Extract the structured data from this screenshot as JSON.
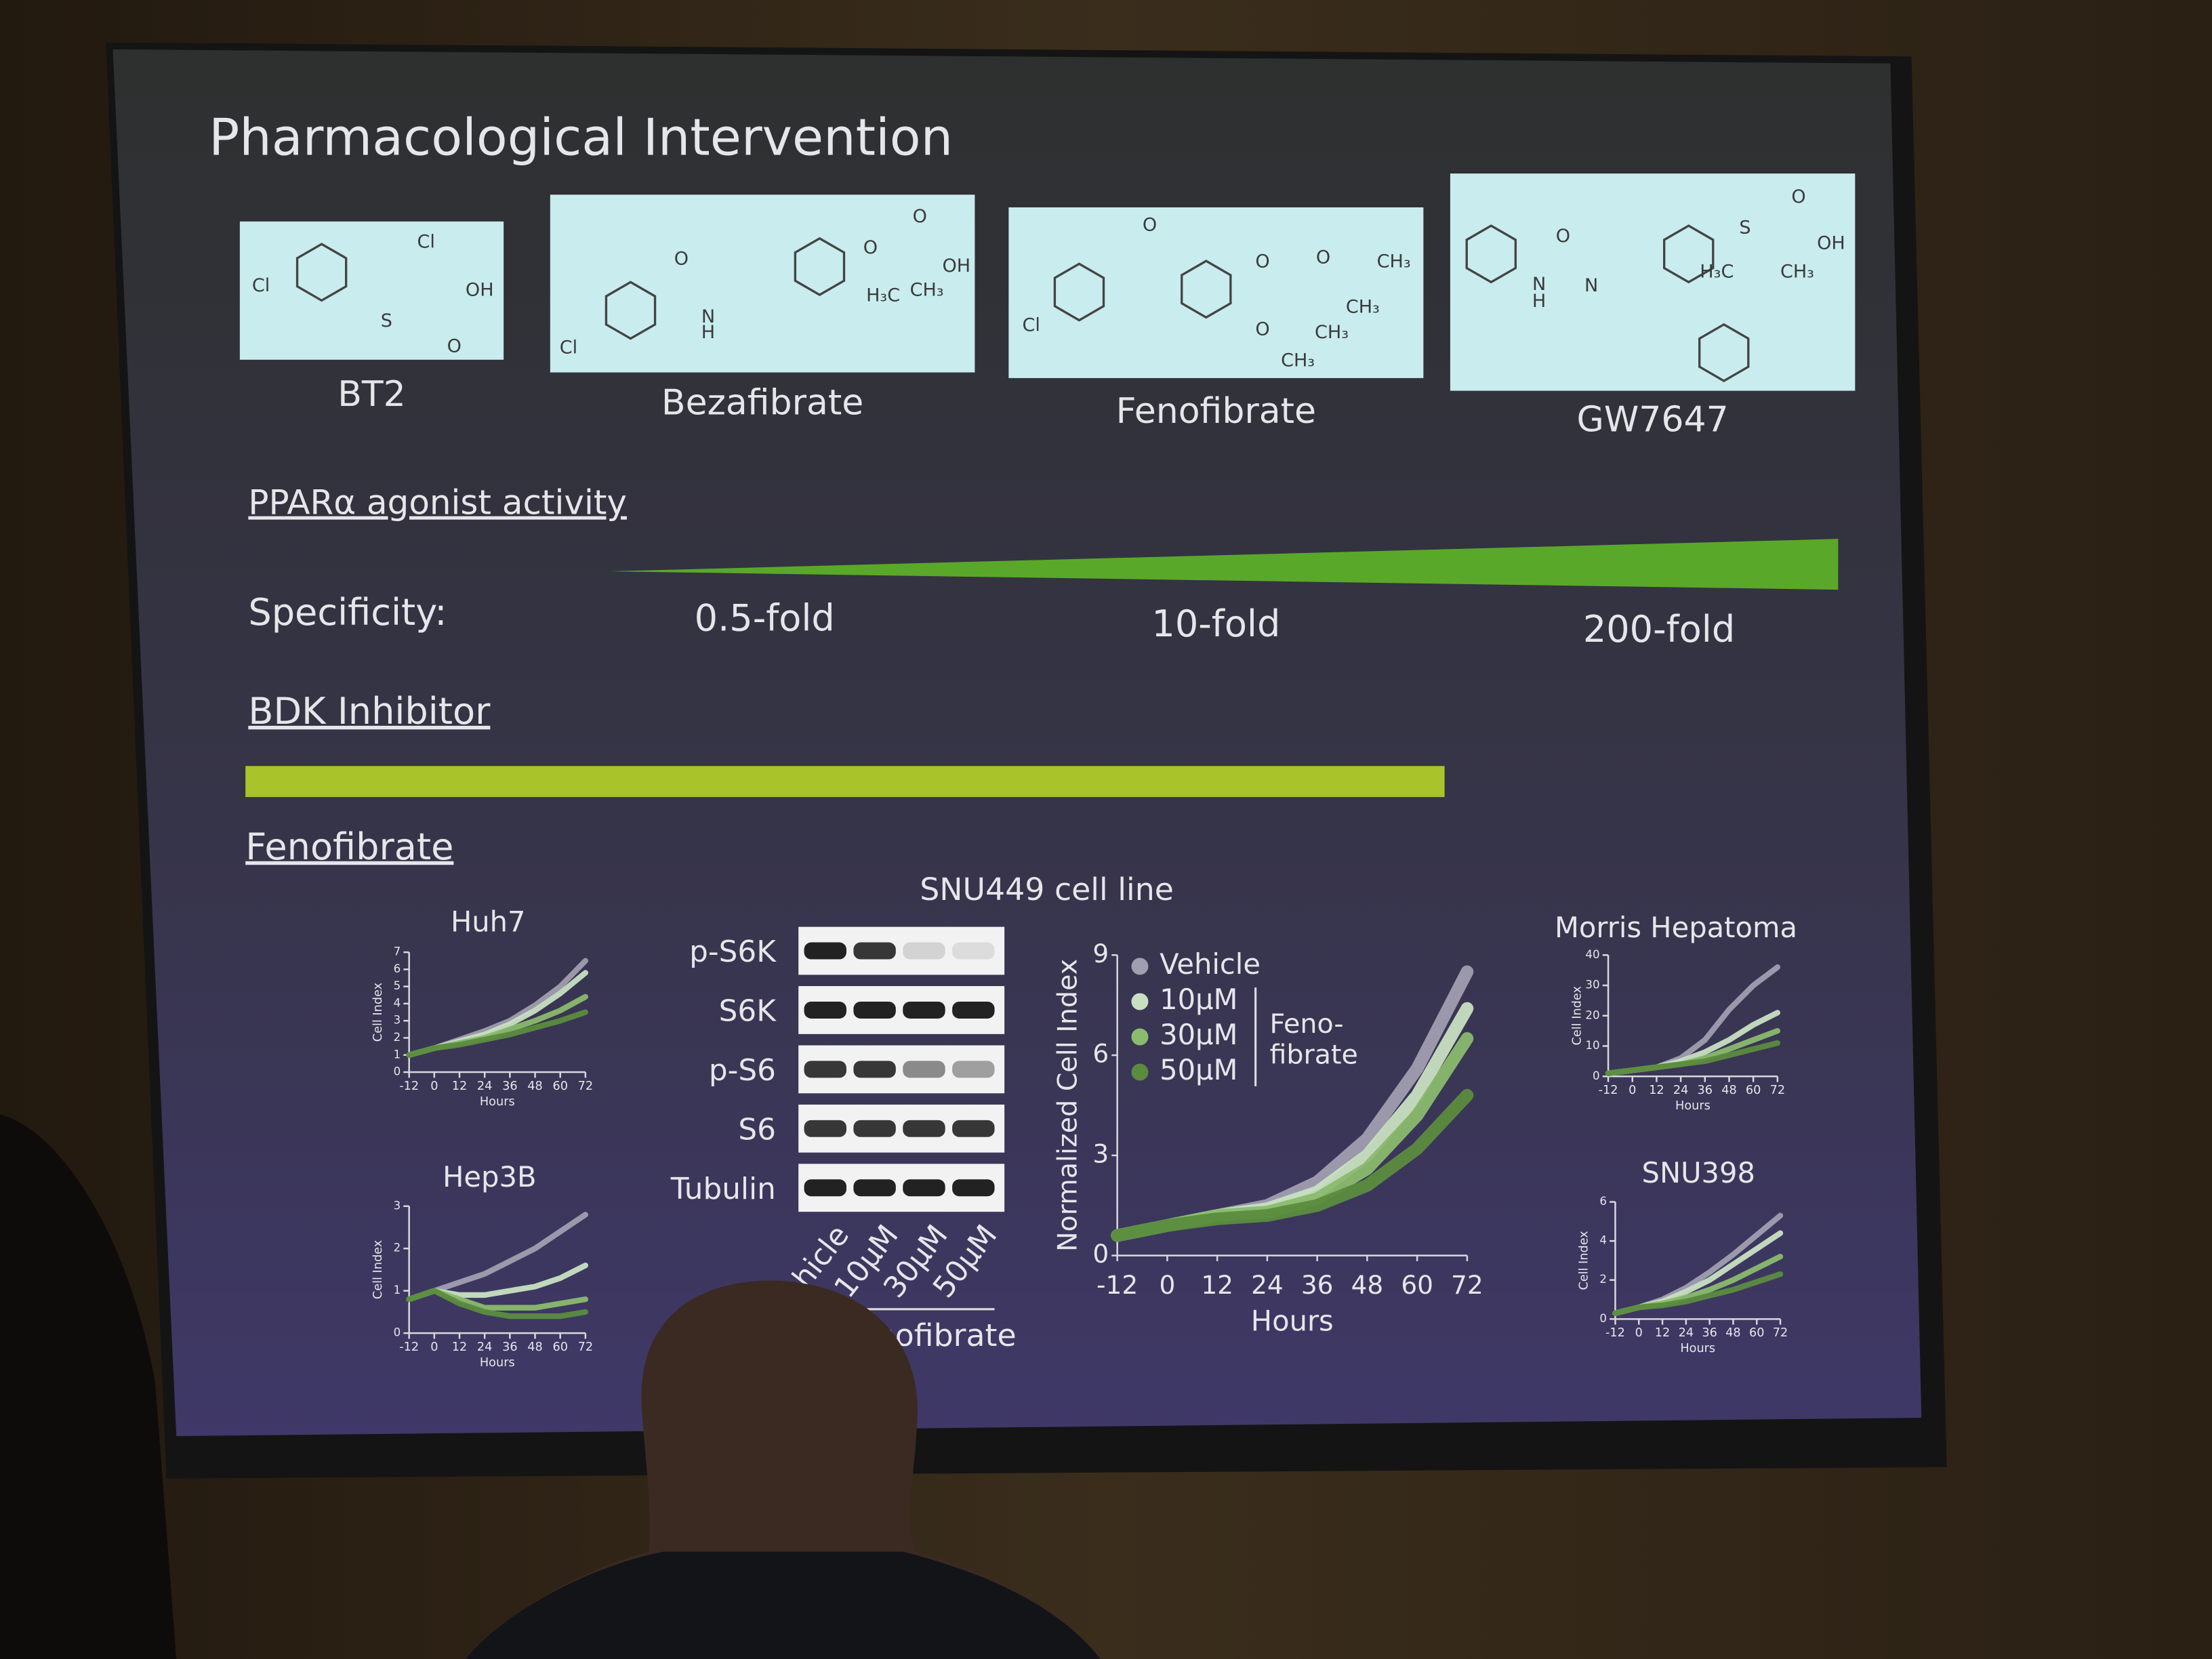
{
  "slide": {
    "title": "Pharmacological Intervention",
    "compounds": [
      {
        "name": "BT2",
        "atoms": [
          "Cl",
          "Cl",
          "OH",
          "S",
          "O"
        ]
      },
      {
        "name": "Bezafibrate",
        "atoms": [
          "O",
          "N",
          "H",
          "Cl",
          "O",
          "O",
          "OH",
          "H₃C",
          "CH₃"
        ]
      },
      {
        "name": "Fenofibrate",
        "atoms": [
          "O",
          "Cl",
          "O",
          "O",
          "CH₃",
          "CH₃",
          "O",
          "CH₃",
          "CH₃"
        ]
      },
      {
        "name": "GW7647",
        "atoms": [
          "O",
          "N",
          "H",
          "N",
          "S",
          "O",
          "OH",
          "H₃C",
          "CH₃"
        ]
      }
    ],
    "ppar_heading": "PPARα agonist activity",
    "specificity_label": "Specificity:",
    "folds": [
      "0.5-fold",
      "10-fold",
      "200-fold"
    ],
    "bdk_heading": "BDK Inhibitor",
    "fenofibrate_heading": "Fenofibrate",
    "blot": {
      "title": "SNU449 cell line",
      "rows": [
        "p-S6K",
        "S6K",
        "p-S6",
        "S6",
        "Tubulin"
      ],
      "lanes": [
        "Vehicle",
        "10μM",
        "30μM",
        "50μM"
      ],
      "group": "Fenofibrate"
    },
    "legend": {
      "names": [
        "Vehicle",
        "10μM",
        "30μM",
        "50μM"
      ],
      "group": [
        "Feno-",
        "fibrate"
      ]
    },
    "charts": [
      {
        "title": "Huh7",
        "ylabel": "Cell Index",
        "xlabel": "Hours",
        "ylim": [
          0,
          7
        ],
        "yticks": [
          0,
          1,
          2,
          3,
          4,
          5,
          6,
          7
        ],
        "xlim": [
          -12,
          72
        ],
        "x": [
          -12,
          0,
          12,
          24,
          36,
          48,
          60,
          72
        ],
        "xticks": [
          -12,
          0,
          12,
          24,
          36,
          48,
          60,
          72
        ],
        "series": [
          {
            "color": "#a09eb0",
            "values": [
              1.0,
              1.4,
              1.9,
              2.4,
              3.0,
              3.9,
              5.0,
              6.5
            ]
          },
          {
            "color": "#c8e0c2",
            "values": [
              1.0,
              1.4,
              1.8,
              2.2,
              2.8,
              3.6,
              4.6,
              5.8
            ]
          },
          {
            "color": "#8abb6e",
            "values": [
              1.0,
              1.4,
              1.7,
              2.0,
              2.5,
              3.0,
              3.6,
              4.4
            ]
          },
          {
            "color": "#5b8c3e",
            "values": [
              1.0,
              1.4,
              1.6,
              1.9,
              2.2,
              2.6,
              3.0,
              3.5
            ]
          }
        ]
      },
      {
        "title": "Hep3B",
        "ylabel": "Cell Index",
        "xlabel": "Hours",
        "ylim": [
          0,
          3
        ],
        "yticks": [
          0,
          1,
          2,
          3
        ],
        "xlim": [
          -12,
          72
        ],
        "x": [
          -12,
          0,
          12,
          24,
          36,
          48,
          60,
          72
        ],
        "xticks": [
          -12,
          0,
          12,
          24,
          36,
          48,
          60,
          72
        ],
        "series": [
          {
            "color": "#a09eb0",
            "values": [
              0.8,
              1.0,
              1.2,
              1.4,
              1.7,
              2.0,
              2.4,
              2.8
            ]
          },
          {
            "color": "#c8e0c2",
            "values": [
              0.8,
              1.0,
              0.9,
              0.9,
              1.0,
              1.1,
              1.3,
              1.6
            ]
          },
          {
            "color": "#8abb6e",
            "values": [
              0.8,
              1.0,
              0.8,
              0.6,
              0.6,
              0.6,
              0.7,
              0.8
            ]
          },
          {
            "color": "#5b8c3e",
            "values": [
              0.8,
              1.0,
              0.7,
              0.5,
              0.4,
              0.4,
              0.4,
              0.5
            ]
          }
        ]
      },
      {
        "title": null,
        "ylabel": "Normalized Cell Index",
        "xlabel": "Hours",
        "ylim": [
          0,
          9
        ],
        "yticks": [
          0,
          3,
          6,
          9
        ],
        "xlim": [
          -12,
          72
        ],
        "x": [
          -12,
          0,
          12,
          24,
          36,
          48,
          60,
          72
        ],
        "xticks": [
          -12,
          0,
          12,
          24,
          36,
          48,
          60,
          72
        ],
        "series": [
          {
            "color": "#a09eb0",
            "values": [
              0.6,
              0.9,
              1.2,
              1.5,
              2.2,
              3.5,
              5.6,
              8.5
            ]
          },
          {
            "color": "#c8e0c2",
            "values": [
              0.6,
              0.9,
              1.2,
              1.4,
              1.9,
              3.0,
              4.8,
              7.4
            ]
          },
          {
            "color": "#8abb6e",
            "values": [
              0.6,
              0.9,
              1.2,
              1.3,
              1.7,
              2.6,
              4.2,
              6.5
            ]
          },
          {
            "color": "#5b8c3e",
            "values": [
              0.6,
              0.9,
              1.1,
              1.2,
              1.5,
              2.1,
              3.2,
              4.8
            ]
          }
        ]
      },
      {
        "title": "Morris Hepatoma",
        "ylabel": "Cell Index",
        "xlabel": "Hours",
        "ylim": [
          0,
          40
        ],
        "yticks": [
          0,
          10,
          20,
          30,
          40
        ],
        "xlim": [
          -12,
          72
        ],
        "x": [
          -12,
          0,
          12,
          24,
          36,
          48,
          60,
          72
        ],
        "xticks": [
          -12,
          0,
          12,
          24,
          36,
          48,
          60,
          72
        ],
        "series": [
          {
            "color": "#a09eb0",
            "values": [
              1,
              2,
              3,
              6,
              12,
              22,
              30,
              36
            ]
          },
          {
            "color": "#c8e0c2",
            "values": [
              1,
              2,
              3,
              5,
              8,
              12,
              17,
              21
            ]
          },
          {
            "color": "#8abb6e",
            "values": [
              1,
              2,
              3,
              4,
              6,
              9,
              12,
              15
            ]
          },
          {
            "color": "#5b8c3e",
            "values": [
              1,
              2,
              3,
              4,
              5,
              7,
              9,
              11
            ]
          }
        ]
      },
      {
        "title": "SNU398",
        "ylabel": "Cell Index",
        "xlabel": "Hours",
        "ylim": [
          0,
          6
        ],
        "yticks": [
          0,
          2,
          4,
          6
        ],
        "xlim": [
          -12,
          72
        ],
        "x": [
          -12,
          0,
          12,
          24,
          36,
          48,
          60,
          72
        ],
        "xticks": [
          -12,
          0,
          12,
          24,
          36,
          48,
          60,
          72
        ],
        "series": [
          {
            "color": "#a09eb0",
            "values": [
              0.3,
              0.6,
              1.0,
              1.6,
              2.4,
              3.3,
              4.3,
              5.3
            ]
          },
          {
            "color": "#c8e0c2",
            "values": [
              0.3,
              0.6,
              0.9,
              1.4,
              2.0,
              2.8,
              3.6,
              4.4
            ]
          },
          {
            "color": "#8abb6e",
            "values": [
              0.3,
              0.6,
              0.8,
              1.1,
              1.5,
              2.0,
              2.6,
              3.2
            ]
          },
          {
            "color": "#5b8c3e",
            "values": [
              0.3,
              0.6,
              0.7,
              0.9,
              1.2,
              1.5,
              1.9,
              2.3
            ]
          }
        ]
      }
    ]
  }
}
